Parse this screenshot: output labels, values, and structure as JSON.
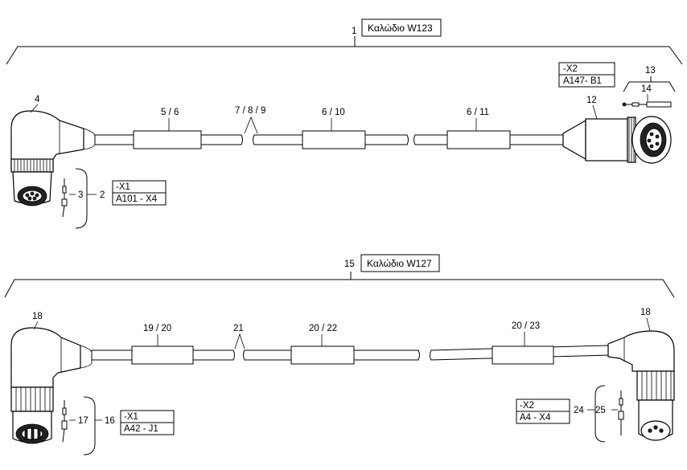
{
  "cable_w123": {
    "title_number": "1",
    "title": "Καλώδιο W123",
    "connector_left_ref": "4",
    "pins_ref": "3",
    "group_ref": "2",
    "left_label_top": "-X1",
    "left_label_bottom": "A101 - X4",
    "sleeve_a": "5 / 6",
    "break_ref": "7 / 8 / 9",
    "sleeve_b": "6 / 10",
    "sleeve_c": "6 / 11",
    "connector_right_ref": "12",
    "group_right_ref": "13",
    "pin_right_ref": "14",
    "right_label_top": "-X2",
    "right_label_bottom": "A147- B1"
  },
  "cable_w127": {
    "title_number": "15",
    "title": "Καλώδιο W127",
    "connector_left_ref": "18",
    "connector_right_ref": "18",
    "pins_left_ref": "17",
    "group_left_ref": "16",
    "left_label_top": "-X1",
    "left_label_bottom": "A42  - J1",
    "sleeve_a": "19 / 20",
    "break_ref": "21",
    "sleeve_b": "20 / 22",
    "sleeve_c": "20 / 23",
    "group_right_ref": "24",
    "pins_right_ref": "25",
    "right_label_top": "-X2",
    "right_label_bottom": "A4  - X4"
  }
}
